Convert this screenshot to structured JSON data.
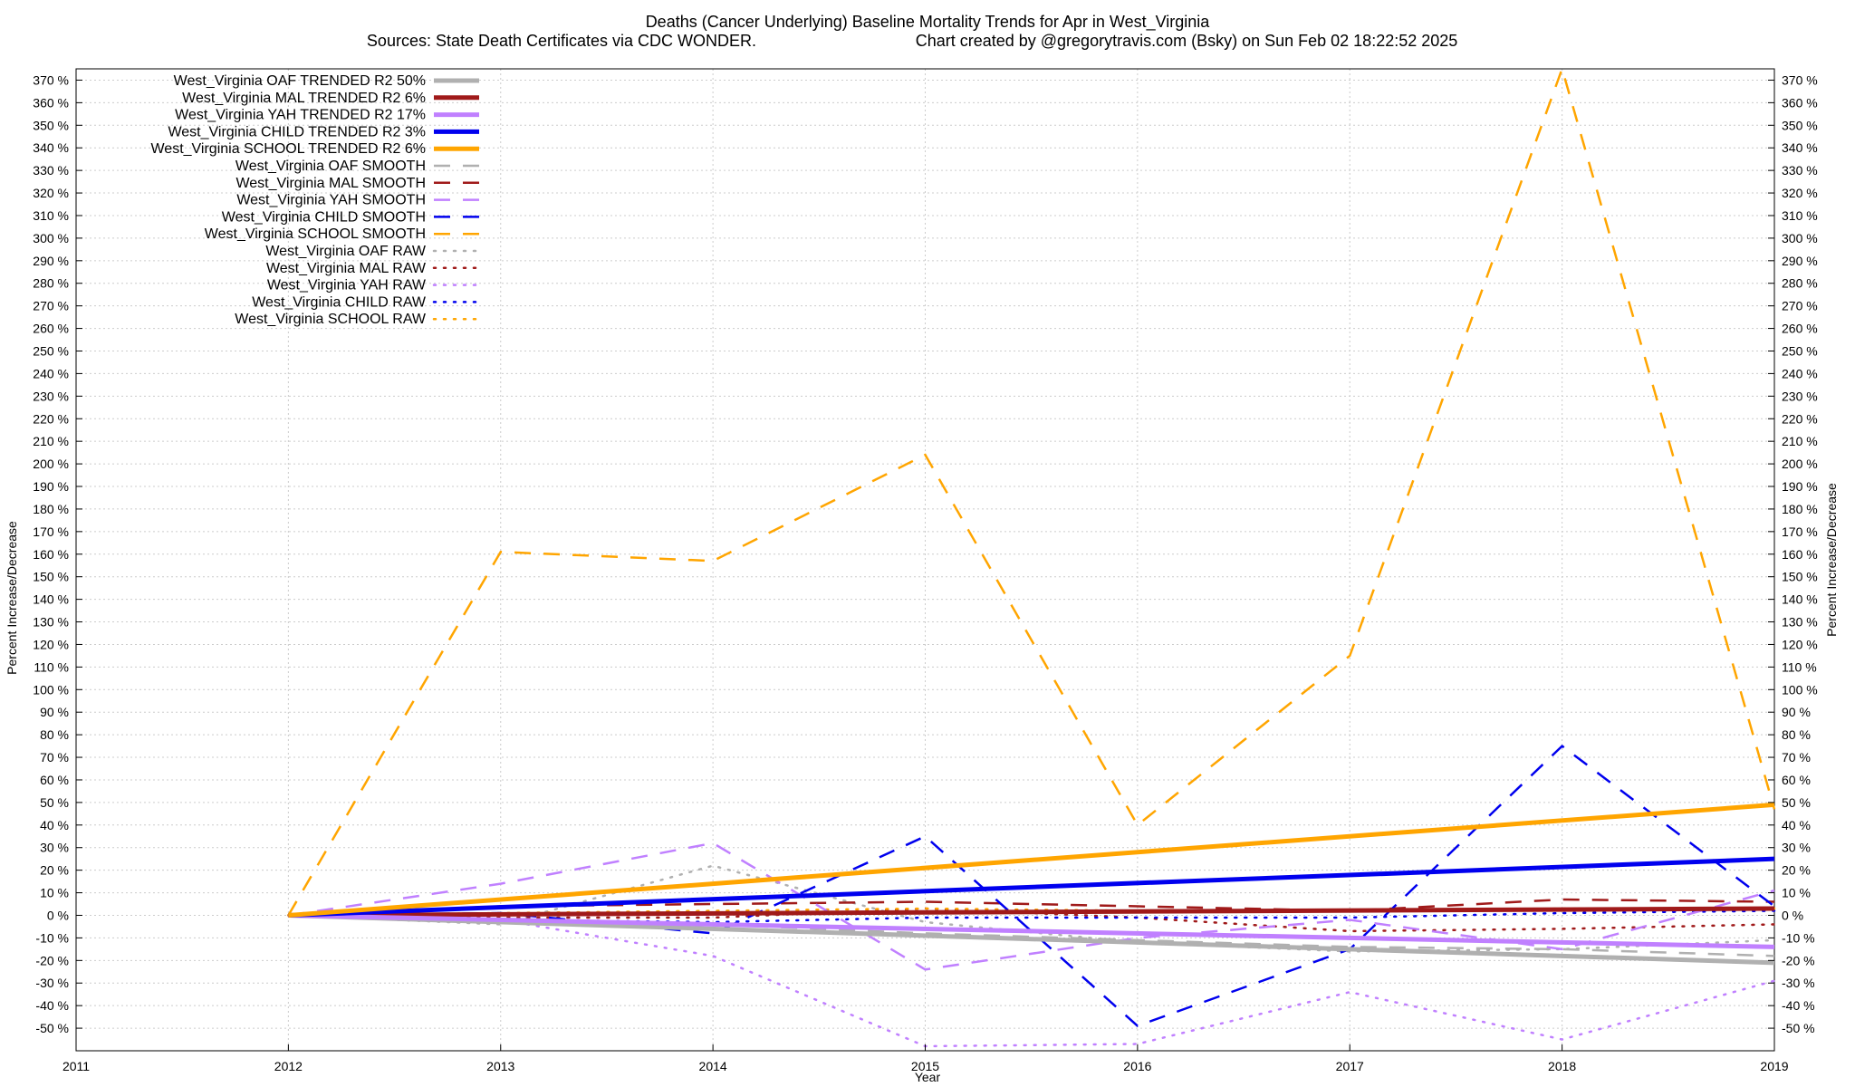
{
  "chart_data": {
    "type": "line",
    "title": "Deaths (Cancer Underlying)  Baseline Mortality Trends for Apr in West_Virginia",
    "subtitle_sources": "Sources: State Death Certificates via CDC WONDER.",
    "subtitle_credit": "Chart created by @gregorytravis.com (Bsky) on Sun Feb 02 18:22:52 2025",
    "xlabel": "Year",
    "ylabel": "Percent Increase/Decrease",
    "y2label": "Percent Increase/Decrease",
    "xlim": [
      2011,
      2019
    ],
    "ylim": [
      -60,
      375
    ],
    "x_ticks": [
      "2011",
      "2012",
      "2013",
      "2014",
      "2015",
      "2016",
      "2017",
      "2018",
      "2019"
    ],
    "y_ticks": [
      -50,
      -40,
      -30,
      -20,
      -10,
      0,
      10,
      20,
      30,
      40,
      50,
      60,
      70,
      80,
      90,
      100,
      110,
      120,
      130,
      140,
      150,
      160,
      170,
      180,
      190,
      200,
      210,
      220,
      230,
      240,
      250,
      260,
      270,
      280,
      290,
      300,
      310,
      320,
      330,
      340,
      350,
      360,
      370
    ],
    "y_tick_suffix": " %",
    "grid": true,
    "legend_position": "top-left",
    "x": [
      2012,
      2013,
      2014,
      2015,
      2016,
      2017,
      2018,
      2019
    ],
    "series": [
      {
        "name": "West_Virginia OAF TRENDED R2  50%",
        "color": "#b0b0b0",
        "style": "solid",
        "x": [
          2012,
          2019
        ],
        "values": [
          0,
          -21
        ]
      },
      {
        "name": "West_Virginia MAL TRENDED R2   6%",
        "color": "#a01a1a",
        "style": "solid",
        "x": [
          2012,
          2019
        ],
        "values": [
          0,
          3
        ]
      },
      {
        "name": "West_Virginia YAH TRENDED R2  17%",
        "color": "#c080ff",
        "style": "solid",
        "x": [
          2012,
          2019
        ],
        "values": [
          0,
          -14
        ]
      },
      {
        "name": "West_Virginia CHILD TRENDED R2   3%",
        "color": "#0000ee",
        "style": "solid",
        "x": [
          2012,
          2019
        ],
        "values": [
          0,
          25
        ]
      },
      {
        "name": "West_Virginia SCHOOL TRENDED R2   6%",
        "color": "#ffa500",
        "style": "solid",
        "x": [
          2012,
          2019
        ],
        "values": [
          0,
          49
        ]
      },
      {
        "name": "West_Virginia OAF SMOOTH",
        "color": "#b0b0b0",
        "style": "dashed",
        "values": [
          0,
          -2,
          -4,
          -8,
          -11,
          -14,
          -15,
          -18
        ]
      },
      {
        "name": "West_Virginia MAL SMOOTH",
        "color": "#a01a1a",
        "style": "dashed",
        "values": [
          0,
          4,
          5,
          6,
          4,
          2,
          7,
          6
        ]
      },
      {
        "name": "West_Virginia YAH SMOOTH",
        "color": "#c080ff",
        "style": "dashed",
        "values": [
          0,
          14,
          32,
          -24,
          -10,
          -2,
          -15,
          11
        ]
      },
      {
        "name": "West_Virginia CHILD SMOOTH",
        "color": "#0000ee",
        "style": "dashed",
        "values": [
          0,
          1,
          -8,
          35,
          -49,
          -15,
          75,
          4
        ]
      },
      {
        "name": "West_Virginia SCHOOL SMOOTH",
        "color": "#ffa500",
        "style": "dashed",
        "values": [
          0,
          161,
          157,
          204,
          40,
          115,
          375,
          47
        ]
      },
      {
        "name": "West_Virginia OAF RAW",
        "color": "#b0b0b0",
        "style": "dotted",
        "values": [
          0,
          -4,
          22,
          -3,
          -12,
          -16,
          -15,
          -11
        ]
      },
      {
        "name": "West_Virginia MAL RAW",
        "color": "#a01a1a",
        "style": "dotted",
        "values": [
          0,
          -1,
          -1,
          3,
          -1,
          -7,
          -6,
          -4
        ]
      },
      {
        "name": "West_Virginia YAH RAW",
        "color": "#c080ff",
        "style": "dotted",
        "values": [
          0,
          -2,
          -18,
          -58,
          -57,
          -34,
          -55,
          -29
        ]
      },
      {
        "name": "West_Virginia CHILD RAW",
        "color": "#0000ee",
        "style": "dotted",
        "values": [
          0,
          -2,
          -3,
          -1,
          -1,
          -1,
          1,
          2
        ]
      },
      {
        "name": "West_Virginia SCHOOL RAW",
        "color": "#ffa500",
        "style": "dotted",
        "values": [
          0,
          1,
          2,
          3,
          2,
          2,
          3,
          3
        ]
      }
    ]
  }
}
